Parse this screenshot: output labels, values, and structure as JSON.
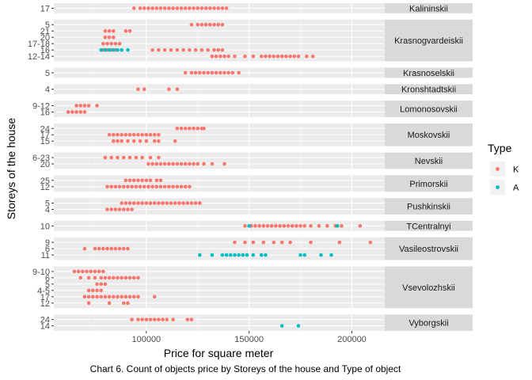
{
  "chart_data": {
    "type": "scatter",
    "title": "",
    "xlabel": "Price for square meter",
    "ylabel": "Storeys of the house",
    "caption": "Chart 6. Count of objects price by Storeys of the house and Type of object",
    "xlim": [
      55000,
      216000
    ],
    "x_ticks": [
      100000,
      150000,
      200000
    ],
    "x_tick_labels": [
      "100000",
      "150000",
      "200000"
    ],
    "grid": true,
    "legend": {
      "title": "Type",
      "position": "right",
      "entries": [
        {
          "label": "K",
          "color": "#F8766D"
        },
        {
          "label": "A",
          "color": "#00BFC4"
        }
      ]
    },
    "facets": [
      {
        "name": "Kalininskii",
        "rows": [
          {
            "label": "17",
            "points": [
              {
                "t": "K",
                "x": [
                  94000,
                  97000,
                  99000,
                  101000,
                  103000,
                  105000,
                  107000,
                  109000,
                  111000,
                  113000,
                  115000,
                  117000,
                  119000,
                  121000,
                  123000,
                  125000,
                  127000,
                  129000,
                  131000,
                  133000,
                  135000,
                  137000,
                  139000
                ]
              }
            ]
          }
        ]
      },
      {
        "name": "Krasnogvardeiskii",
        "rows": [
          {
            "label": "5",
            "points": [
              {
                "t": "K",
                "x": [
                  122000,
                  125000,
                  127000,
                  129000,
                  131000,
                  133000,
                  135000,
                  137000
                ]
              }
            ]
          },
          {
            "label": "21",
            "points": [
              {
                "t": "K",
                "x": [
                  80000,
                  82000,
                  84000,
                  90000,
                  92000
                ]
              }
            ]
          },
          {
            "label": "20",
            "points": [
              {
                "t": "K",
                "x": [
                  80000,
                  82000,
                  84000
                ]
              }
            ]
          },
          {
            "label": "17-18",
            "points": [
              {
                "t": "K",
                "x": [
                  79000,
                  81000,
                  83000,
                  85000,
                  87000
                ]
              }
            ]
          },
          {
            "label": "16",
            "points": [
              {
                "t": "K",
                "x": [
                  79000,
                  81000,
                  83000,
                  85000,
                  86000,
                  88000,
                  103000,
                  106000,
                  109000,
                  112000,
                  115000,
                  118000,
                  121000,
                  124000,
                  127000,
                  130000,
                  133000,
                  135000,
                  137000
                ]
              },
              {
                "t": "A",
                "x": [
                  78000,
                  80000,
                  82000,
                  84000,
                  86000,
                  88000,
                  91000
                ]
              }
            ]
          },
          {
            "label": "12-14",
            "points": [
              {
                "t": "K",
                "x": [
                  132000,
                  134000,
                  136000,
                  138000,
                  140000,
                  143000,
                  148000,
                  152000,
                  156000,
                  158000,
                  160000,
                  162000,
                  164000,
                  166000,
                  168000,
                  170000,
                  172000,
                  174000,
                  178000,
                  181000
                ]
              }
            ]
          }
        ]
      },
      {
        "name": "Krasnoselskii",
        "rows": [
          {
            "label": "5",
            "points": [
              {
                "t": "K",
                "x": [
                  119000,
                  122000,
                  124000,
                  126000,
                  128000,
                  130000,
                  132000,
                  134000,
                  136000,
                  138000,
                  140000,
                  142000,
                  145000
                ]
              }
            ]
          }
        ]
      },
      {
        "name": "Kronshtadtskii",
        "rows": [
          {
            "label": "4",
            "points": [
              {
                "t": "K",
                "x": [
                  96000,
                  99000,
                  111000,
                  115000
                ]
              }
            ]
          }
        ]
      },
      {
        "name": "Lomonosovskii",
        "rows": [
          {
            "label": "9-12",
            "points": [
              {
                "t": "K",
                "x": [
                  66000,
                  68000,
                  70000,
                  72000,
                  76000
                ]
              }
            ]
          },
          {
            "label": "16",
            "points": [
              {
                "t": "K",
                "x": [
                  62000,
                  64000,
                  66000,
                  68000,
                  70000
                ]
              }
            ]
          }
        ]
      },
      {
        "name": "Moskovskii",
        "rows": [
          {
            "label": "24",
            "points": [
              {
                "t": "K",
                "x": [
                  115000,
                  117000,
                  119000,
                  121000,
                  123000,
                  125000,
                  127000,
                  128000
                ]
              }
            ]
          },
          {
            "label": "17",
            "points": [
              {
                "t": "K",
                "x": [
                  82000,
                  84000,
                  86000,
                  88000,
                  90000,
                  92000,
                  94000,
                  96000,
                  98000,
                  100000,
                  102000,
                  104000,
                  106000
                ]
              }
            ]
          },
          {
            "label": "15",
            "points": [
              {
                "t": "K",
                "x": [
                  84000,
                  86000,
                  88000,
                  91000,
                  94000,
                  97000,
                  100000,
                  104000,
                  106000,
                  114000
                ]
              }
            ]
          }
        ]
      },
      {
        "name": "Nevskii",
        "rows": [
          {
            "label": "6-23",
            "points": [
              {
                "t": "K",
                "x": [
                  80000,
                  83000,
                  86000,
                  89000,
                  92000,
                  95000,
                  98000,
                  102000,
                  106000
                ]
              }
            ]
          },
          {
            "label": "20",
            "points": [
              {
                "t": "K",
                "x": [
                  101000,
                  103000,
                  105000,
                  107000,
                  109000,
                  111000,
                  113000,
                  115000,
                  117000,
                  119000,
                  121000,
                  123000,
                  125000,
                  128000,
                  132000,
                  138000
                ]
              }
            ]
          }
        ]
      },
      {
        "name": "Primorskii",
        "rows": [
          {
            "label": "25",
            "points": [
              {
                "t": "K",
                "x": [
                  90000,
                  92000,
                  94000,
                  96000,
                  98000,
                  100000,
                  102000,
                  105000,
                  107000
                ]
              }
            ]
          },
          {
            "label": "12",
            "points": [
              {
                "t": "K",
                "x": [
                  81000,
                  83000,
                  85000,
                  87000,
                  89000,
                  91000,
                  93000,
                  95000,
                  97000,
                  99000,
                  101000,
                  103000,
                  105000,
                  107000,
                  109000,
                  111000,
                  113000,
                  115000,
                  117000,
                  119000,
                  121000
                ]
              }
            ]
          }
        ]
      },
      {
        "name": "Pushkinskii",
        "rows": [
          {
            "label": "5",
            "points": [
              {
                "t": "K",
                "x": [
                  88000,
                  90000,
                  92000,
                  94000,
                  96000,
                  98000,
                  100000,
                  102000,
                  104000,
                  106000,
                  108000,
                  110000,
                  112000,
                  114000,
                  116000,
                  118000,
                  120000,
                  122000,
                  124000,
                  126000
                ]
              }
            ]
          },
          {
            "label": "4",
            "points": [
              {
                "t": "K",
                "x": [
                  81000,
                  83000,
                  85000,
                  87000,
                  89000,
                  91000,
                  93000
                ]
              }
            ]
          }
        ]
      },
      {
        "name": "TCentralnyi",
        "rows": [
          {
            "label": "10",
            "points": [
              {
                "t": "K",
                "x": [
                  148000,
                  151000,
                  153000,
                  155000,
                  157000,
                  159000,
                  161000,
                  163000,
                  165000,
                  167000,
                  169000,
                  171000,
                  173000,
                  175000,
                  177000,
                  180000,
                  184000,
                  188000,
                  192000,
                  195000,
                  204000
                ]
              },
              {
                "t": "A",
                "x": [
                  150000,
                  193000
                ]
              }
            ]
          }
        ]
      },
      {
        "name": "Vasileostrovskii",
        "rows": [
          {
            "label": "9",
            "points": [
              {
                "t": "K",
                "x": [
                  143000,
                  148000,
                  152000,
                  157000,
                  162000,
                  166000,
                  170000,
                  180000,
                  194000,
                  209000
                ]
              }
            ]
          },
          {
            "label": "6",
            "points": [
              {
                "t": "K",
                "x": [
                  70000,
                  75000,
                  77000,
                  79000,
                  81000,
                  83000,
                  85000,
                  87000,
                  89000,
                  91000
                ]
              }
            ]
          },
          {
            "label": "11",
            "points": [
              {
                "t": "A",
                "x": [
                  126000,
                  132000,
                  137000,
                  139000,
                  141000,
                  143000,
                  145000,
                  147000,
                  149000,
                  152000,
                  156000,
                  158000,
                  175000,
                  177000,
                  185000,
                  190000
                ]
              }
            ]
          }
        ]
      },
      {
        "name": "Vsevolozhskii",
        "rows": [
          {
            "label": "9-10",
            "points": [
              {
                "t": "K",
                "x": [
                  65000,
                  67000,
                  69000,
                  71000,
                  73000,
                  75000,
                  77000,
                  79000
                ]
              }
            ]
          },
          {
            "label": "6",
            "points": [
              {
                "t": "K",
                "x": [
                  68000,
                  72000,
                  75000,
                  78000,
                  80000,
                  82000,
                  84000,
                  86000,
                  88000,
                  90000,
                  92000,
                  94000,
                  96000
                ]
              }
            ]
          },
          {
            "label": "5",
            "points": [
              {
                "t": "K",
                "x": [
                  76000,
                  78000,
                  80000
                ]
              }
            ]
          },
          {
            "label": "4-5",
            "points": [
              {
                "t": "K",
                "x": [
                  72000,
                  74000,
                  76000,
                  78000
                ]
              }
            ]
          },
          {
            "label": "17",
            "points": [
              {
                "t": "K",
                "x": [
                  70000,
                  72000,
                  74000,
                  76000,
                  78000,
                  80000,
                  82000,
                  84000,
                  86000,
                  88000,
                  90000,
                  92000,
                  94000,
                  96000,
                  104000
                ]
              }
            ]
          },
          {
            "label": "12",
            "points": [
              {
                "t": "K",
                "x": [
                  72000,
                  82000,
                  89000,
                  91000
                ]
              }
            ]
          }
        ]
      },
      {
        "name": "Vyborgskii",
        "rows": [
          {
            "label": "24",
            "points": [
              {
                "t": "K",
                "x": [
                  93000,
                  96000,
                  98000,
                  100000,
                  102000,
                  104000,
                  106000,
                  108000,
                  110000,
                  113000,
                  120000,
                  122000
                ]
              }
            ]
          },
          {
            "label": "14",
            "points": [
              {
                "t": "A",
                "x": [
                  166000,
                  174000
                ]
              }
            ]
          }
        ]
      }
    ]
  }
}
